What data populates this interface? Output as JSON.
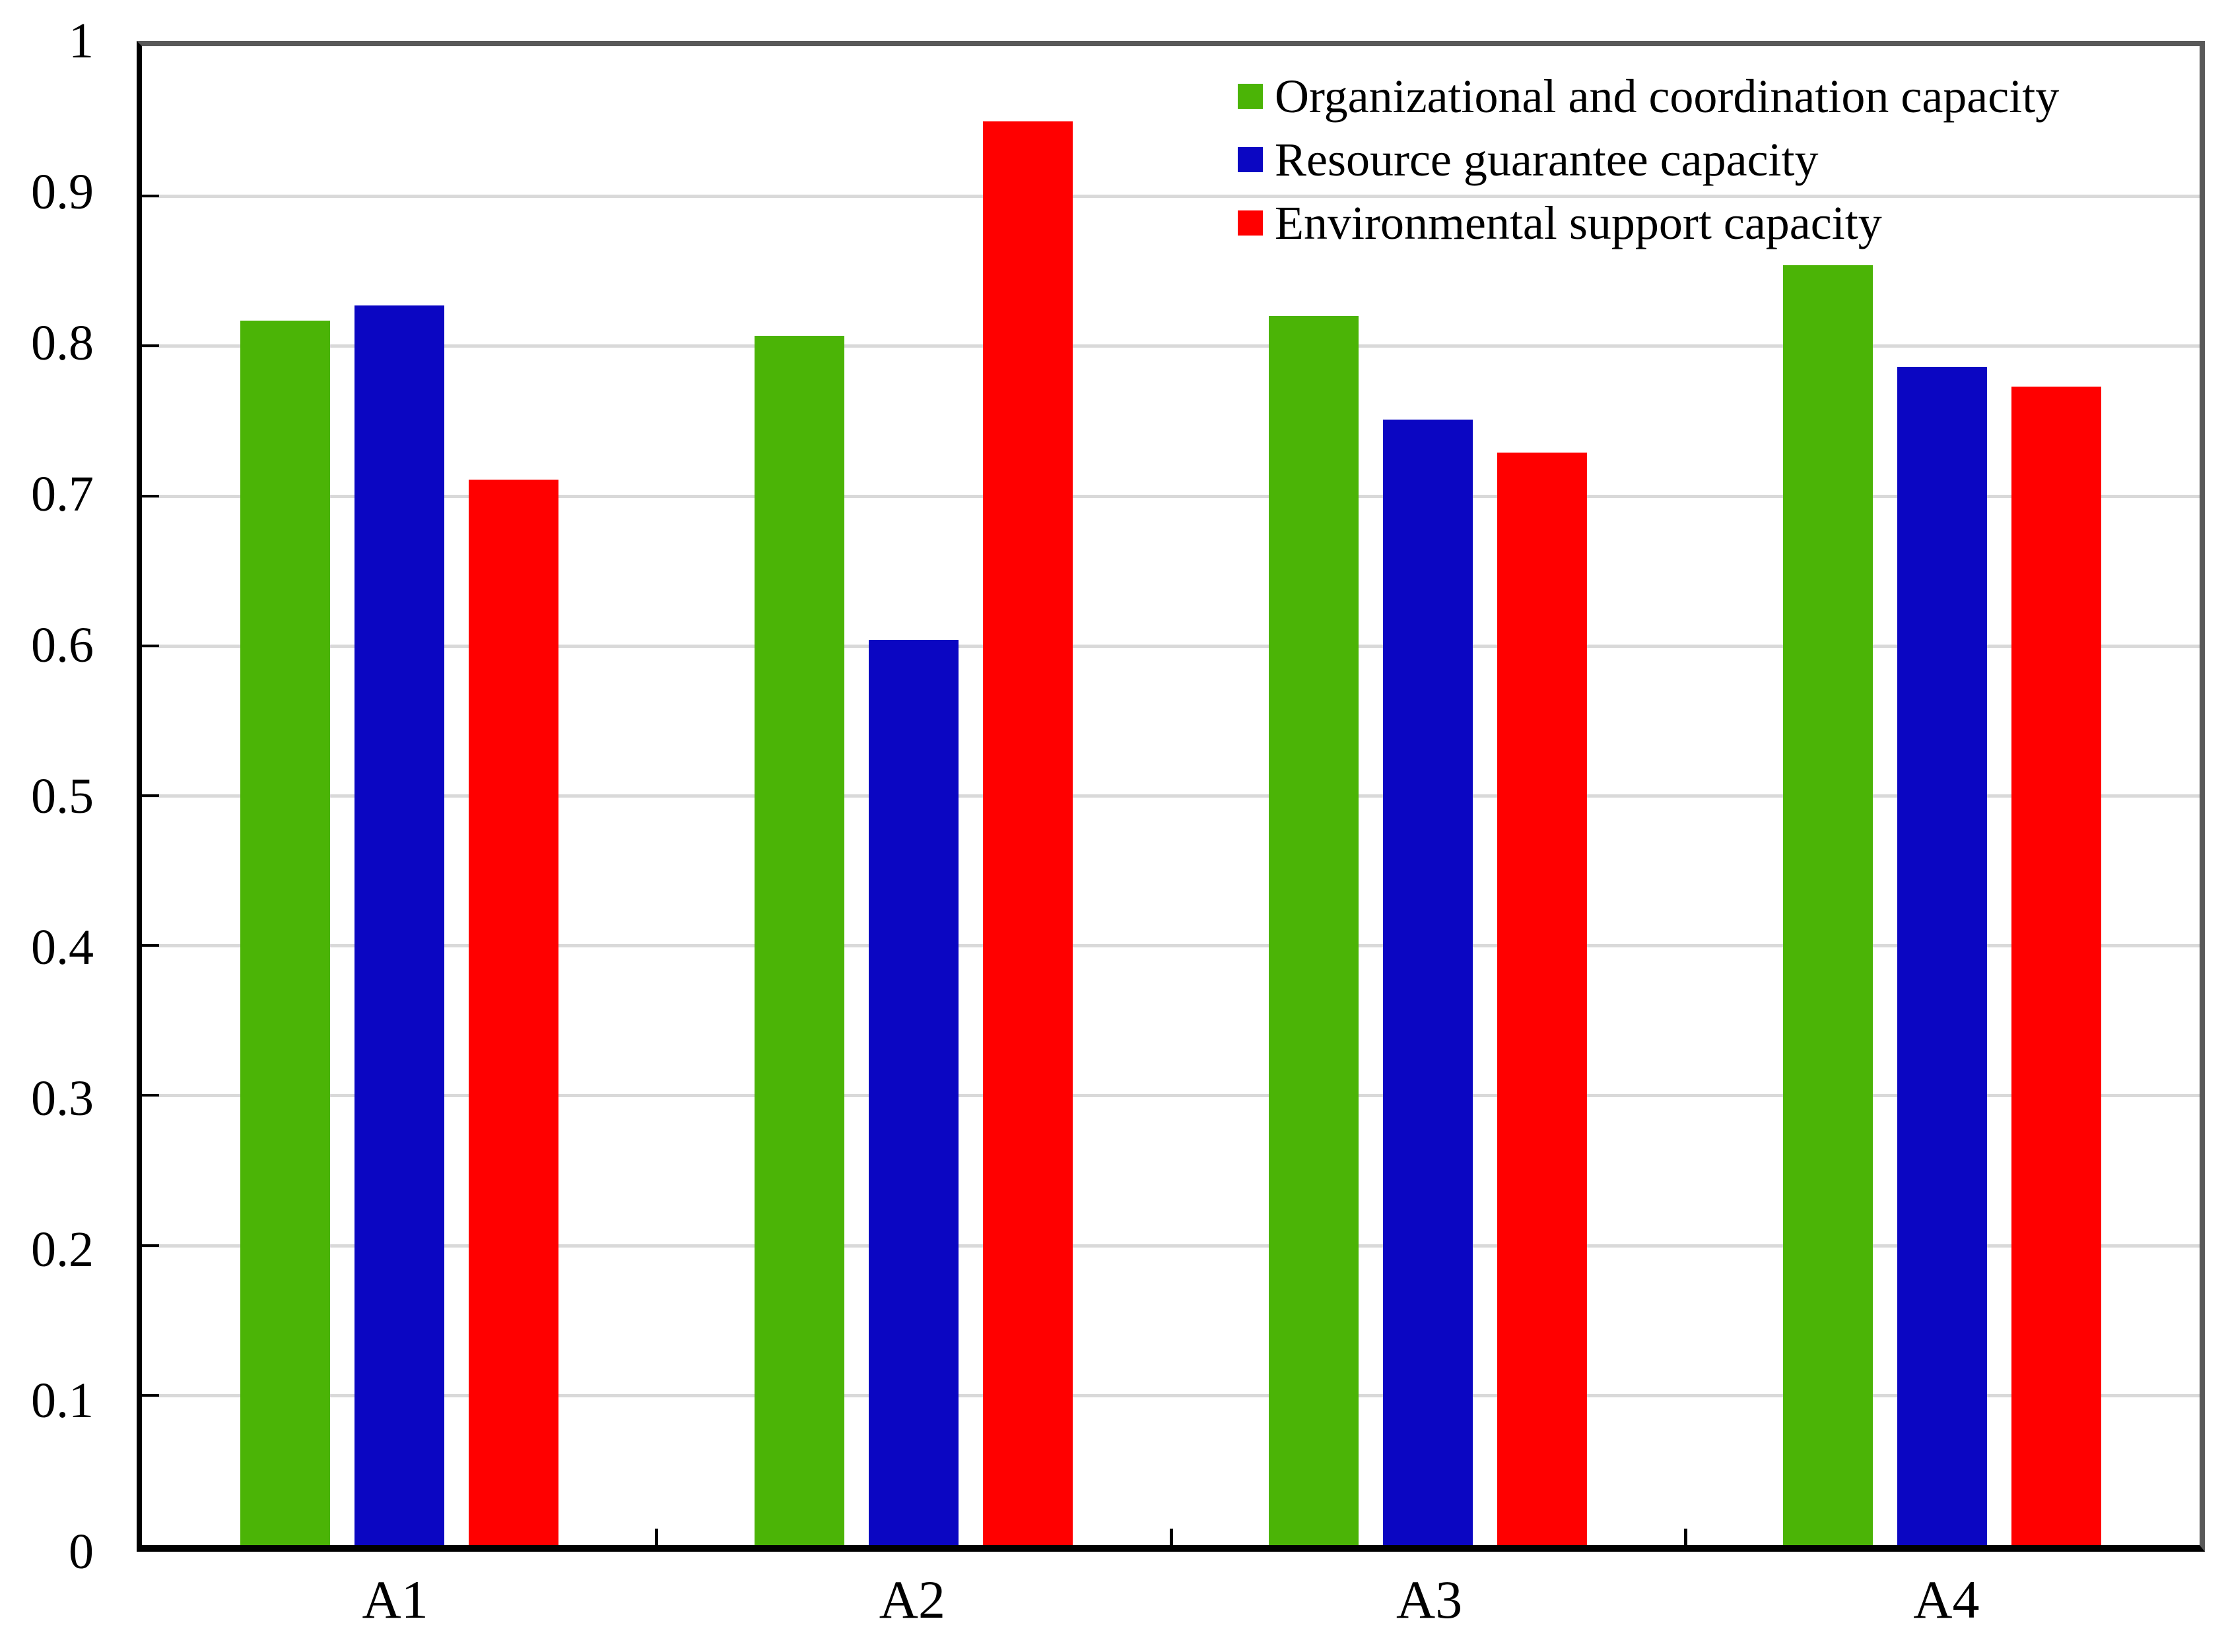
{
  "chart_data": {
    "type": "bar",
    "title": "",
    "xlabel": "",
    "ylabel": "",
    "categories": [
      "A1",
      "A2",
      "A3",
      "A4"
    ],
    "series": [
      {
        "name": "Organizational and coordination capacity",
        "color": "#4BB406",
        "values": [
          0.817,
          0.807,
          0.82,
          0.854
        ]
      },
      {
        "name": "Resource guarantee capacity",
        "color": "#0B06C2",
        "values": [
          0.827,
          0.604,
          0.751,
          0.786
        ]
      },
      {
        "name": "Environmental support capacity",
        "color": "#FF0000",
        "values": [
          0.711,
          0.95,
          0.729,
          0.773
        ]
      }
    ],
    "ylim": [
      0,
      1
    ],
    "ytick_labels": [
      "1",
      "0.9",
      "0.8",
      "0.7",
      "0.6",
      "0.5",
      "0.4",
      "0.3",
      "0.2",
      "0.1",
      "0"
    ],
    "grid": "horizontal",
    "gridline_color": "#d9d9d9",
    "axis_color_left_bottom": "#000000",
    "axis_color_top_right": "#595959",
    "legend_position": "top-right"
  }
}
